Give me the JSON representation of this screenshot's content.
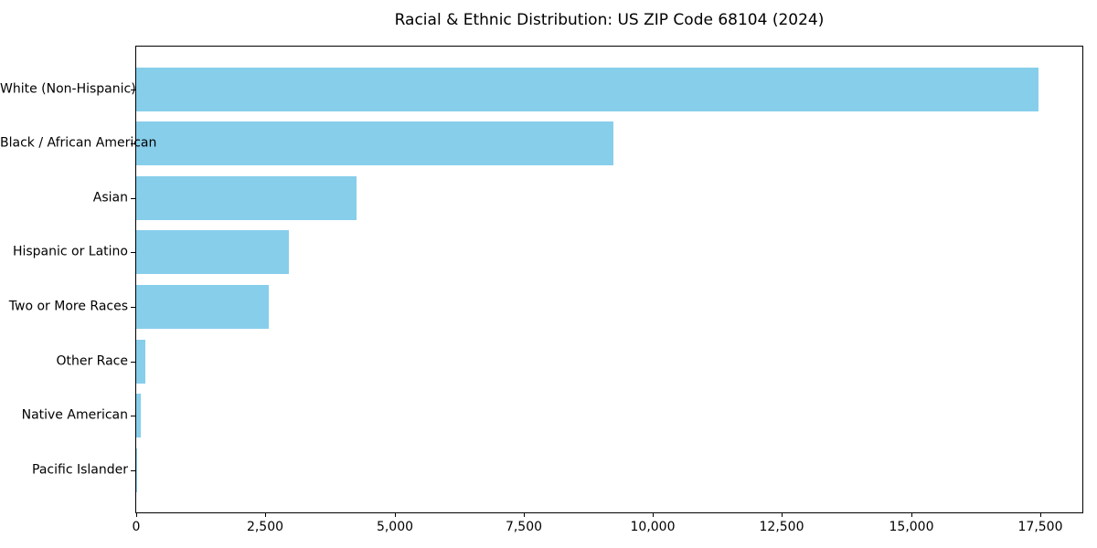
{
  "chart_data": {
    "type": "bar",
    "orientation": "horizontal",
    "title": "Racial & Ethnic Distribution: US ZIP Code 68104 (2024)",
    "xlabel": "",
    "ylabel": "",
    "categories": [
      "White (Non-Hispanic)",
      "Black / African American",
      "Asian",
      "Hispanic or Latino",
      "Two or More Races",
      "Other Race",
      "Native American",
      "Pacific Islander"
    ],
    "values": [
      17470,
      9240,
      4260,
      2950,
      2560,
      170,
      85,
      20
    ],
    "xlim": [
      0,
      18314
    ],
    "xticks": [
      0,
      2500,
      5000,
      7500,
      10000,
      12500,
      15000,
      17500
    ],
    "xtick_labels": [
      "0",
      "2,500",
      "5,000",
      "7,500",
      "10,000",
      "12,500",
      "15,000",
      "17,500"
    ],
    "bar_color": "#87CEEB",
    "grid": false,
    "legend": null
  }
}
